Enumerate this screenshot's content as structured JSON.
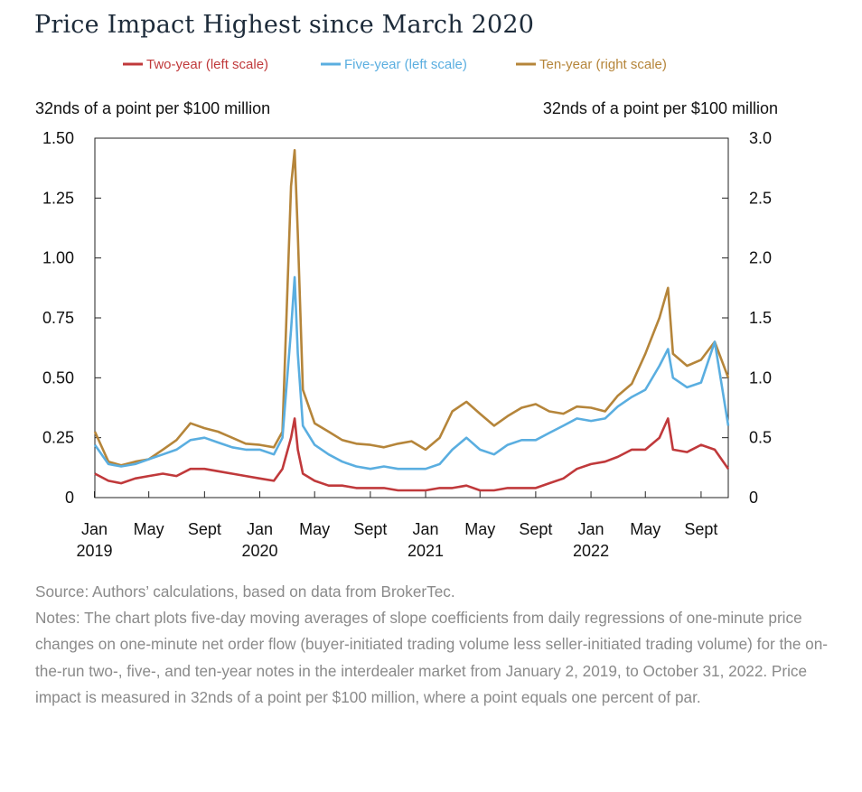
{
  "title": "Price Impact Highest since March 2020",
  "source": "Source: Authors’ calculations, based on data from BrokerTec.",
  "notes": "Notes: The chart plots five-day moving averages of slope coefficients from daily regressions of one-minute price changes on one-minute net order flow (buyer-initiated trading volume less seller-initiated trading volume) for the on-the-run two-, five-, and ten-year notes in the interdealer market from January 2, 2019, to October 31, 2022. Price impact is measured in 32nds of a point per $100 million, where a point equals one percent of par.",
  "chart_data": {
    "type": "line",
    "title": "Price Impact Highest since March 2020",
    "left_axis_label": "32nds of a point per $100 million",
    "right_axis_label": "32nds of a point per $100 million",
    "left_ylim": [
      0,
      1.5
    ],
    "right_ylim": [
      0,
      3.0
    ],
    "left_ticks": [
      "0",
      "0.25",
      "0.50",
      "0.75",
      "1.00",
      "1.25",
      "1.50"
    ],
    "left_tick_values": [
      0,
      0.25,
      0.5,
      0.75,
      1.0,
      1.25,
      1.5
    ],
    "right_ticks": [
      "0",
      "0.5",
      "1.0",
      "1.5",
      "2.0",
      "2.5",
      "3.0"
    ],
    "right_tick_values": [
      0,
      0.5,
      1.0,
      1.5,
      2.0,
      2.5,
      3.0
    ],
    "x_range": [
      "2019-01-02",
      "2022-10-31"
    ],
    "x_ticks": [
      {
        "label": "Jan",
        "year": "2019",
        "date": "2019-01-01"
      },
      {
        "label": "May",
        "year": "",
        "date": "2019-05-01"
      },
      {
        "label": "Sept",
        "year": "",
        "date": "2019-09-01"
      },
      {
        "label": "Jan",
        "year": "2020",
        "date": "2020-01-01"
      },
      {
        "label": "May",
        "year": "",
        "date": "2020-05-01"
      },
      {
        "label": "Sept",
        "year": "",
        "date": "2020-09-01"
      },
      {
        "label": "Jan",
        "year": "2021",
        "date": "2021-01-01"
      },
      {
        "label": "May",
        "year": "",
        "date": "2021-05-01"
      },
      {
        "label": "Sept",
        "year": "",
        "date": "2021-09-01"
      },
      {
        "label": "Jan",
        "year": "2022",
        "date": "2022-01-01"
      },
      {
        "label": "May",
        "year": "",
        "date": "2022-05-01"
      },
      {
        "label": "Sept",
        "year": "",
        "date": "2022-09-01"
      }
    ],
    "grid": false,
    "legend_position": "top-center",
    "series": [
      {
        "name": "Two-year (left scale)",
        "axis": "left",
        "color": "#c0393b",
        "points": [
          [
            "2019-01-02",
            0.1
          ],
          [
            "2019-02-01",
            0.07
          ],
          [
            "2019-03-01",
            0.06
          ],
          [
            "2019-04-01",
            0.08
          ],
          [
            "2019-05-01",
            0.09
          ],
          [
            "2019-06-01",
            0.1
          ],
          [
            "2019-07-01",
            0.09
          ],
          [
            "2019-08-01",
            0.12
          ],
          [
            "2019-09-01",
            0.12
          ],
          [
            "2019-10-01",
            0.11
          ],
          [
            "2019-11-01",
            0.1
          ],
          [
            "2019-12-01",
            0.09
          ],
          [
            "2020-01-01",
            0.08
          ],
          [
            "2020-02-01",
            0.07
          ],
          [
            "2020-02-20",
            0.12
          ],
          [
            "2020-03-10",
            0.25
          ],
          [
            "2020-03-18",
            0.33
          ],
          [
            "2020-03-25",
            0.2
          ],
          [
            "2020-04-05",
            0.1
          ],
          [
            "2020-05-01",
            0.07
          ],
          [
            "2020-06-01",
            0.05
          ],
          [
            "2020-07-01",
            0.05
          ],
          [
            "2020-08-01",
            0.04
          ],
          [
            "2020-09-01",
            0.04
          ],
          [
            "2020-10-01",
            0.04
          ],
          [
            "2020-11-01",
            0.03
          ],
          [
            "2020-12-01",
            0.03
          ],
          [
            "2021-01-01",
            0.03
          ],
          [
            "2021-02-01",
            0.04
          ],
          [
            "2021-03-01",
            0.04
          ],
          [
            "2021-04-01",
            0.05
          ],
          [
            "2021-05-01",
            0.03
          ],
          [
            "2021-06-01",
            0.03
          ],
          [
            "2021-07-01",
            0.04
          ],
          [
            "2021-08-01",
            0.04
          ],
          [
            "2021-09-01",
            0.04
          ],
          [
            "2021-10-01",
            0.06
          ],
          [
            "2021-11-01",
            0.08
          ],
          [
            "2021-12-01",
            0.12
          ],
          [
            "2022-01-01",
            0.14
          ],
          [
            "2022-02-01",
            0.15
          ],
          [
            "2022-03-01",
            0.17
          ],
          [
            "2022-04-01",
            0.2
          ],
          [
            "2022-05-01",
            0.2
          ],
          [
            "2022-06-01",
            0.25
          ],
          [
            "2022-06-20",
            0.33
          ],
          [
            "2022-07-01",
            0.2
          ],
          [
            "2022-08-01",
            0.19
          ],
          [
            "2022-09-01",
            0.22
          ],
          [
            "2022-10-01",
            0.2
          ],
          [
            "2022-10-31",
            0.12
          ]
        ]
      },
      {
        "name": "Five-year (left scale)",
        "axis": "left",
        "color": "#5aaee0",
        "points": [
          [
            "2019-01-02",
            0.22
          ],
          [
            "2019-02-01",
            0.14
          ],
          [
            "2019-03-01",
            0.13
          ],
          [
            "2019-04-01",
            0.14
          ],
          [
            "2019-05-01",
            0.16
          ],
          [
            "2019-06-01",
            0.18
          ],
          [
            "2019-07-01",
            0.2
          ],
          [
            "2019-08-01",
            0.24
          ],
          [
            "2019-09-01",
            0.25
          ],
          [
            "2019-10-01",
            0.23
          ],
          [
            "2019-11-01",
            0.21
          ],
          [
            "2019-12-01",
            0.2
          ],
          [
            "2020-01-01",
            0.2
          ],
          [
            "2020-02-01",
            0.18
          ],
          [
            "2020-02-20",
            0.25
          ],
          [
            "2020-03-10",
            0.7
          ],
          [
            "2020-03-18",
            0.92
          ],
          [
            "2020-03-25",
            0.6
          ],
          [
            "2020-04-05",
            0.3
          ],
          [
            "2020-05-01",
            0.22
          ],
          [
            "2020-06-01",
            0.18
          ],
          [
            "2020-07-01",
            0.15
          ],
          [
            "2020-08-01",
            0.13
          ],
          [
            "2020-09-01",
            0.12
          ],
          [
            "2020-10-01",
            0.13
          ],
          [
            "2020-11-01",
            0.12
          ],
          [
            "2020-12-01",
            0.12
          ],
          [
            "2021-01-01",
            0.12
          ],
          [
            "2021-02-01",
            0.14
          ],
          [
            "2021-03-01",
            0.2
          ],
          [
            "2021-04-01",
            0.25
          ],
          [
            "2021-05-01",
            0.2
          ],
          [
            "2021-06-01",
            0.18
          ],
          [
            "2021-07-01",
            0.22
          ],
          [
            "2021-08-01",
            0.24
          ],
          [
            "2021-09-01",
            0.24
          ],
          [
            "2021-10-01",
            0.27
          ],
          [
            "2021-11-01",
            0.3
          ],
          [
            "2021-12-01",
            0.33
          ],
          [
            "2022-01-01",
            0.32
          ],
          [
            "2022-02-01",
            0.33
          ],
          [
            "2022-03-01",
            0.38
          ],
          [
            "2022-04-01",
            0.42
          ],
          [
            "2022-05-01",
            0.45
          ],
          [
            "2022-06-01",
            0.55
          ],
          [
            "2022-06-20",
            0.62
          ],
          [
            "2022-07-01",
            0.5
          ],
          [
            "2022-08-01",
            0.46
          ],
          [
            "2022-09-01",
            0.48
          ],
          [
            "2022-10-01",
            0.65
          ],
          [
            "2022-10-31",
            0.3
          ]
        ]
      },
      {
        "name": "Ten-year (right scale)",
        "axis": "right",
        "color": "#b5853a",
        "points": [
          [
            "2019-01-02",
            0.55
          ],
          [
            "2019-02-01",
            0.3
          ],
          [
            "2019-03-01",
            0.27
          ],
          [
            "2019-04-01",
            0.3
          ],
          [
            "2019-05-01",
            0.32
          ],
          [
            "2019-06-01",
            0.4
          ],
          [
            "2019-07-01",
            0.48
          ],
          [
            "2019-08-01",
            0.62
          ],
          [
            "2019-09-01",
            0.58
          ],
          [
            "2019-10-01",
            0.55
          ],
          [
            "2019-11-01",
            0.5
          ],
          [
            "2019-12-01",
            0.45
          ],
          [
            "2020-01-01",
            0.44
          ],
          [
            "2020-02-01",
            0.42
          ],
          [
            "2020-02-20",
            0.55
          ],
          [
            "2020-03-10",
            2.6
          ],
          [
            "2020-03-18",
            2.9
          ],
          [
            "2020-03-25",
            2.2
          ],
          [
            "2020-04-05",
            0.9
          ],
          [
            "2020-05-01",
            0.62
          ],
          [
            "2020-06-01",
            0.55
          ],
          [
            "2020-07-01",
            0.48
          ],
          [
            "2020-08-01",
            0.45
          ],
          [
            "2020-09-01",
            0.44
          ],
          [
            "2020-10-01",
            0.42
          ],
          [
            "2020-11-01",
            0.45
          ],
          [
            "2020-12-01",
            0.47
          ],
          [
            "2021-01-01",
            0.4
          ],
          [
            "2021-02-01",
            0.5
          ],
          [
            "2021-03-01",
            0.72
          ],
          [
            "2021-04-01",
            0.8
          ],
          [
            "2021-05-01",
            0.7
          ],
          [
            "2021-06-01",
            0.6
          ],
          [
            "2021-07-01",
            0.68
          ],
          [
            "2021-08-01",
            0.75
          ],
          [
            "2021-09-01",
            0.78
          ],
          [
            "2021-10-01",
            0.72
          ],
          [
            "2021-11-01",
            0.7
          ],
          [
            "2021-12-01",
            0.76
          ],
          [
            "2022-01-01",
            0.75
          ],
          [
            "2022-02-01",
            0.72
          ],
          [
            "2022-03-01",
            0.85
          ],
          [
            "2022-04-01",
            0.95
          ],
          [
            "2022-05-01",
            1.2
          ],
          [
            "2022-06-01",
            1.5
          ],
          [
            "2022-06-20",
            1.75
          ],
          [
            "2022-07-01",
            1.2
          ],
          [
            "2022-08-01",
            1.1
          ],
          [
            "2022-09-01",
            1.15
          ],
          [
            "2022-10-01",
            1.3
          ],
          [
            "2022-10-31",
            1.0
          ]
        ]
      }
    ]
  }
}
